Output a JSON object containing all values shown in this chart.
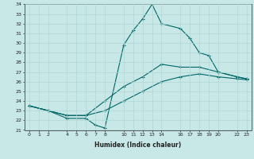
{
  "xlabel": "Humidex (Indice chaleur)",
  "bg_color": "#c8e8e8",
  "line_color": "#006666",
  "grid_color": "#b0d4d4",
  "ylim": [
    21,
    34
  ],
  "xlim": [
    -0.5,
    23.5
  ],
  "yticks": [
    21,
    22,
    23,
    24,
    25,
    26,
    27,
    28,
    29,
    30,
    31,
    32,
    33,
    34
  ],
  "xticks": [
    0,
    1,
    2,
    4,
    5,
    6,
    7,
    8,
    10,
    11,
    12,
    13,
    14,
    16,
    17,
    18,
    19,
    20,
    22,
    23
  ],
  "line1_x": [
    0,
    2,
    4,
    6,
    7,
    8,
    10,
    11,
    12,
    13,
    14,
    16,
    17,
    18,
    19,
    20,
    22,
    23
  ],
  "line1_y": [
    23.5,
    23.0,
    22.2,
    22.2,
    21.5,
    21.2,
    29.8,
    31.3,
    32.5,
    34.0,
    32.0,
    31.5,
    30.5,
    29.0,
    28.7,
    27.0,
    26.5,
    26.3
  ],
  "line2_x": [
    0,
    2,
    4,
    6,
    8,
    10,
    12,
    14,
    16,
    18,
    20,
    22,
    23
  ],
  "line2_y": [
    23.5,
    23.0,
    22.5,
    22.5,
    24.0,
    25.5,
    26.5,
    27.8,
    27.5,
    27.5,
    27.0,
    26.5,
    26.3
  ],
  "line3_x": [
    0,
    2,
    4,
    6,
    8,
    10,
    12,
    14,
    16,
    18,
    20,
    22,
    23
  ],
  "line3_y": [
    23.5,
    23.0,
    22.5,
    22.5,
    23.0,
    24.0,
    25.0,
    26.0,
    26.5,
    26.8,
    26.5,
    26.3,
    26.2
  ]
}
